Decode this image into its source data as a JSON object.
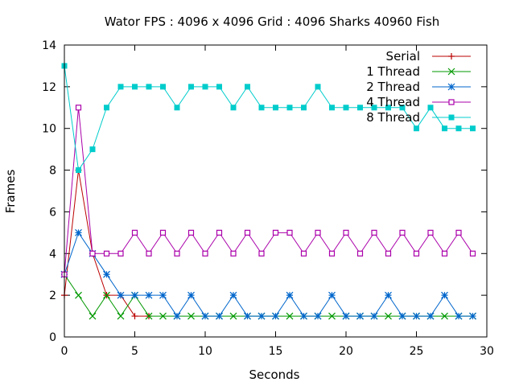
{
  "chart_data": {
    "type": "line",
    "title": "Wator FPS : 4096 x 4096 Grid : 4096 Sharks 40960 Fish",
    "xlabel": "Seconds",
    "ylabel": "Frames",
    "xlim": [
      0,
      30
    ],
    "ylim": [
      0,
      14
    ],
    "xticks": [
      0,
      5,
      10,
      15,
      20,
      25,
      30
    ],
    "yticks": [
      0,
      2,
      4,
      6,
      8,
      10,
      12,
      14
    ],
    "grid": false,
    "legend_position": "top-right",
    "x": [
      0,
      1,
      2,
      3,
      4,
      5,
      6,
      7,
      8,
      9,
      10,
      11,
      12,
      13,
      14,
      15,
      16,
      17,
      18,
      19,
      20,
      21,
      22,
      23,
      24,
      25,
      26,
      27,
      28,
      29
    ],
    "series": [
      {
        "name": "Serial",
        "color": "#bb0000",
        "marker": "plus",
        "values": [
          2,
          8,
          4,
          2,
          2,
          1,
          1,
          null,
          null,
          null,
          null,
          null,
          null,
          null,
          null,
          null,
          null,
          null,
          null,
          null,
          null,
          null,
          null,
          null,
          null,
          null,
          null,
          null,
          null,
          null
        ]
      },
      {
        "name": "1 Thread",
        "color": "#009900",
        "marker": "cross",
        "values": [
          3,
          2,
          1,
          2,
          1,
          2,
          1,
          1,
          1,
          1,
          1,
          1,
          1,
          1,
          1,
          1,
          1,
          1,
          1,
          1,
          1,
          1,
          1,
          1,
          1,
          1,
          1,
          1,
          1,
          1
        ]
      },
      {
        "name": "2 Thread",
        "color": "#0066cc",
        "marker": "star",
        "values": [
          3,
          5,
          4,
          3,
          2,
          2,
          2,
          2,
          1,
          2,
          1,
          1,
          2,
          1,
          1,
          1,
          2,
          1,
          1,
          2,
          1,
          1,
          1,
          2,
          1,
          1,
          1,
          2,
          1,
          1
        ]
      },
      {
        "name": "4 Thread",
        "color": "#aa00aa",
        "marker": "box",
        "values": [
          3,
          11,
          4,
          4,
          4,
          5,
          4,
          5,
          4,
          5,
          4,
          5,
          4,
          5,
          4,
          5,
          5,
          4,
          5,
          4,
          5,
          4,
          5,
          4,
          5,
          4,
          5,
          4,
          5,
          4
        ]
      },
      {
        "name": "8 Thread",
        "color": "#00cccc",
        "marker": "filled-box",
        "values": [
          13,
          8,
          9,
          11,
          12,
          12,
          12,
          12,
          11,
          12,
          12,
          12,
          11,
          12,
          11,
          11,
          11,
          11,
          12,
          11,
          11,
          11,
          11,
          11,
          11,
          10,
          11,
          10,
          10,
          10
        ]
      }
    ]
  }
}
